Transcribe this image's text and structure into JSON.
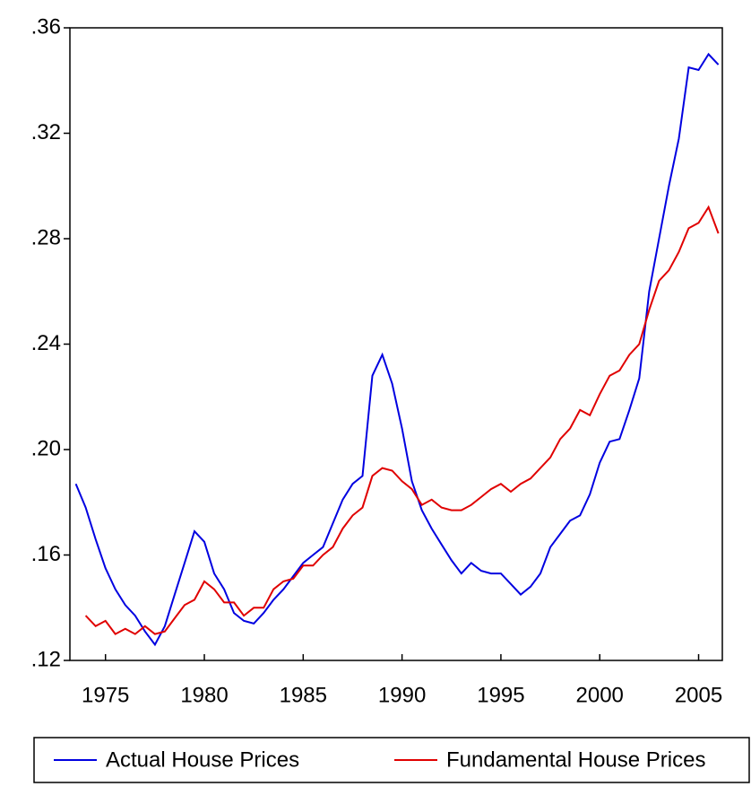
{
  "chart_data": {
    "type": "line",
    "x": [
      1973.5,
      1974,
      1974.5,
      1975,
      1975.5,
      1976,
      1976.5,
      1977,
      1977.5,
      1978,
      1978.5,
      1979,
      1979.5,
      1980,
      1980.5,
      1981,
      1981.5,
      1982,
      1982.5,
      1983,
      1983.5,
      1984,
      1984.5,
      1985,
      1985.5,
      1986,
      1986.5,
      1987,
      1987.5,
      1988,
      1988.5,
      1989,
      1989.5,
      1990,
      1990.5,
      1991,
      1991.5,
      1992,
      1992.5,
      1993,
      1993.5,
      1994,
      1994.5,
      1995,
      1995.5,
      1996,
      1996.5,
      1997,
      1997.5,
      1998,
      1998.5,
      1999,
      1999.5,
      2000,
      2000.5,
      2001,
      2001.5,
      2002,
      2002.5,
      2003,
      2003.5,
      2004,
      2004.5,
      2005,
      2005.5,
      2006
    ],
    "series": [
      {
        "name": "Actual House Prices",
        "color": "#0000e0",
        "values": [
          0.187,
          0.178,
          0.166,
          0.155,
          0.147,
          0.141,
          0.137,
          0.131,
          0.126,
          0.133,
          0.145,
          0.157,
          0.169,
          0.165,
          0.153,
          0.147,
          0.138,
          0.135,
          0.134,
          0.138,
          0.143,
          0.147,
          0.152,
          0.157,
          0.16,
          0.163,
          0.172,
          0.181,
          0.187,
          0.19,
          0.228,
          0.236,
          0.225,
          0.208,
          0.188,
          0.177,
          0.17,
          0.164,
          0.158,
          0.153,
          0.157,
          0.154,
          0.153,
          0.153,
          0.149,
          0.145,
          0.148,
          0.153,
          0.163,
          0.168,
          0.173,
          0.175,
          0.183,
          0.195,
          0.203,
          0.204,
          0.215,
          0.227,
          0.26,
          0.28,
          0.3,
          0.318,
          0.345,
          0.344,
          0.35,
          0.346
        ]
      },
      {
        "name": "Fundamental House Prices",
        "color": "#e00000",
        "values": [
          null,
          0.137,
          0.133,
          0.135,
          0.13,
          0.132,
          0.13,
          0.133,
          0.13,
          0.131,
          0.136,
          0.141,
          0.143,
          0.15,
          0.147,
          0.142,
          0.142,
          0.137,
          0.14,
          0.14,
          0.147,
          0.15,
          0.151,
          0.156,
          0.156,
          0.16,
          0.163,
          0.17,
          0.175,
          0.178,
          0.19,
          0.193,
          0.192,
          0.188,
          0.185,
          0.179,
          0.181,
          0.178,
          0.177,
          0.177,
          0.179,
          0.182,
          0.185,
          0.187,
          0.184,
          0.187,
          0.189,
          0.193,
          0.197,
          0.204,
          0.208,
          0.215,
          0.213,
          0.221,
          0.228,
          0.23,
          0.236,
          0.24,
          0.253,
          0.264,
          0.268,
          0.275,
          0.284,
          0.286,
          0.292,
          0.282
        ]
      }
    ],
    "xlim": [
      1973.2,
      2006.2
    ],
    "xticks": [
      1975,
      1980,
      1985,
      1990,
      1995,
      2000,
      2005
    ],
    "ylim": [
      0.12,
      0.36
    ],
    "yticks": [
      {
        "value": 0.12,
        "label": ".12"
      },
      {
        "value": 0.16,
        "label": ".16"
      },
      {
        "value": 0.2,
        "label": ".20"
      },
      {
        "value": 0.24,
        "label": ".24"
      },
      {
        "value": 0.28,
        "label": ".28"
      },
      {
        "value": 0.32,
        "label": ".32"
      },
      {
        "value": 0.36,
        "label": ".36"
      }
    ],
    "legend": "bottom"
  }
}
